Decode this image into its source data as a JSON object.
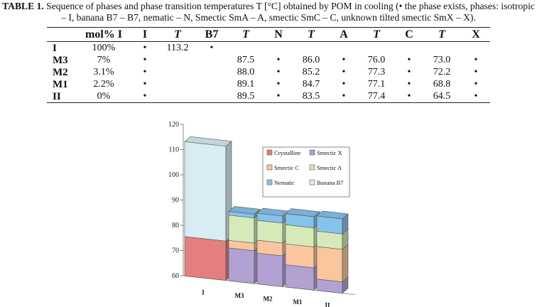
{
  "caption": {
    "label": "TABLE 1.",
    "text": " Sequence of phases and phase transition temperatures T [°C] obtained by POM in cooling (• the phase exists, phases: isotropic – I, banana B7 – B7, nematic – N, Smectic SmA – A, smectic SmC – C, unknown tilted smectic SmX – X)."
  },
  "table": {
    "headers": [
      "",
      "mol% I",
      "I",
      "T",
      "B7",
      "T",
      "N",
      "T",
      "A",
      "T",
      "C",
      "T",
      "X"
    ],
    "rows": [
      [
        "I",
        "100%",
        "•",
        "113.2",
        "•",
        "",
        "",
        "",
        "",
        "",
        "",
        "",
        ""
      ],
      [
        "M3",
        "7%",
        "•",
        "",
        "",
        "87.5",
        "•",
        "86.0",
        "•",
        "76.0",
        "•",
        "73.0",
        "•"
      ],
      [
        "M2",
        "3.1%",
        "•",
        "",
        "",
        "88.0",
        "•",
        "85.2",
        "•",
        "77.3",
        "•",
        "72.2",
        "•"
      ],
      [
        "M1",
        "2.2%",
        "•",
        "",
        "",
        "89.1",
        "•",
        "84.7",
        "•",
        "77.1",
        "•",
        "68.8",
        "•"
      ],
      [
        "II",
        "0%",
        "•",
        "",
        "",
        "89.5",
        "•",
        "83.5",
        "•",
        "77.4",
        "•",
        "64.5",
        "•"
      ]
    ]
  },
  "chart_data": {
    "type": "bar",
    "stacked": true,
    "three_d": true,
    "categories": [
      "I",
      "M3",
      "M2",
      "M1",
      "II"
    ],
    "ylim": [
      60,
      120
    ],
    "yticks": [
      60,
      70,
      80,
      90,
      100,
      110,
      120
    ],
    "legend_position": "inside-top-right",
    "series": [
      {
        "name": "Crystalline",
        "color": "#e47f80",
        "segments": [
          [
            60,
            75.6
          ],
          null,
          null,
          null,
          null
        ]
      },
      {
        "name": "Smectic X",
        "color": "#b3a1d4",
        "segments": [
          null,
          [
            60,
            73.0
          ],
          [
            60,
            72.2
          ],
          [
            60,
            68.8
          ],
          [
            60,
            64.5
          ]
        ]
      },
      {
        "name": "Smectic C",
        "color": "#f9c69e",
        "segments": [
          null,
          [
            73.0,
            76.0
          ],
          [
            72.2,
            77.3
          ],
          [
            68.8,
            77.1
          ],
          [
            64.5,
            77.4
          ]
        ]
      },
      {
        "name": "Smectic A",
        "color": "#d5eab8",
        "segments": [
          null,
          [
            76.0,
            86.0
          ],
          [
            77.3,
            85.2
          ],
          [
            77.1,
            84.7
          ],
          [
            77.4,
            83.5
          ]
        ]
      },
      {
        "name": "Nematic",
        "color": "#86c3ea",
        "segments": [
          null,
          [
            86.0,
            87.5
          ],
          [
            85.2,
            88.0
          ],
          [
            84.7,
            89.1
          ],
          [
            83.5,
            89.5
          ]
        ]
      },
      {
        "name": "Banana B7",
        "color": "#d7edf3",
        "segments": [
          [
            75.6,
            113.2
          ],
          null,
          null,
          null,
          null
        ]
      }
    ]
  }
}
